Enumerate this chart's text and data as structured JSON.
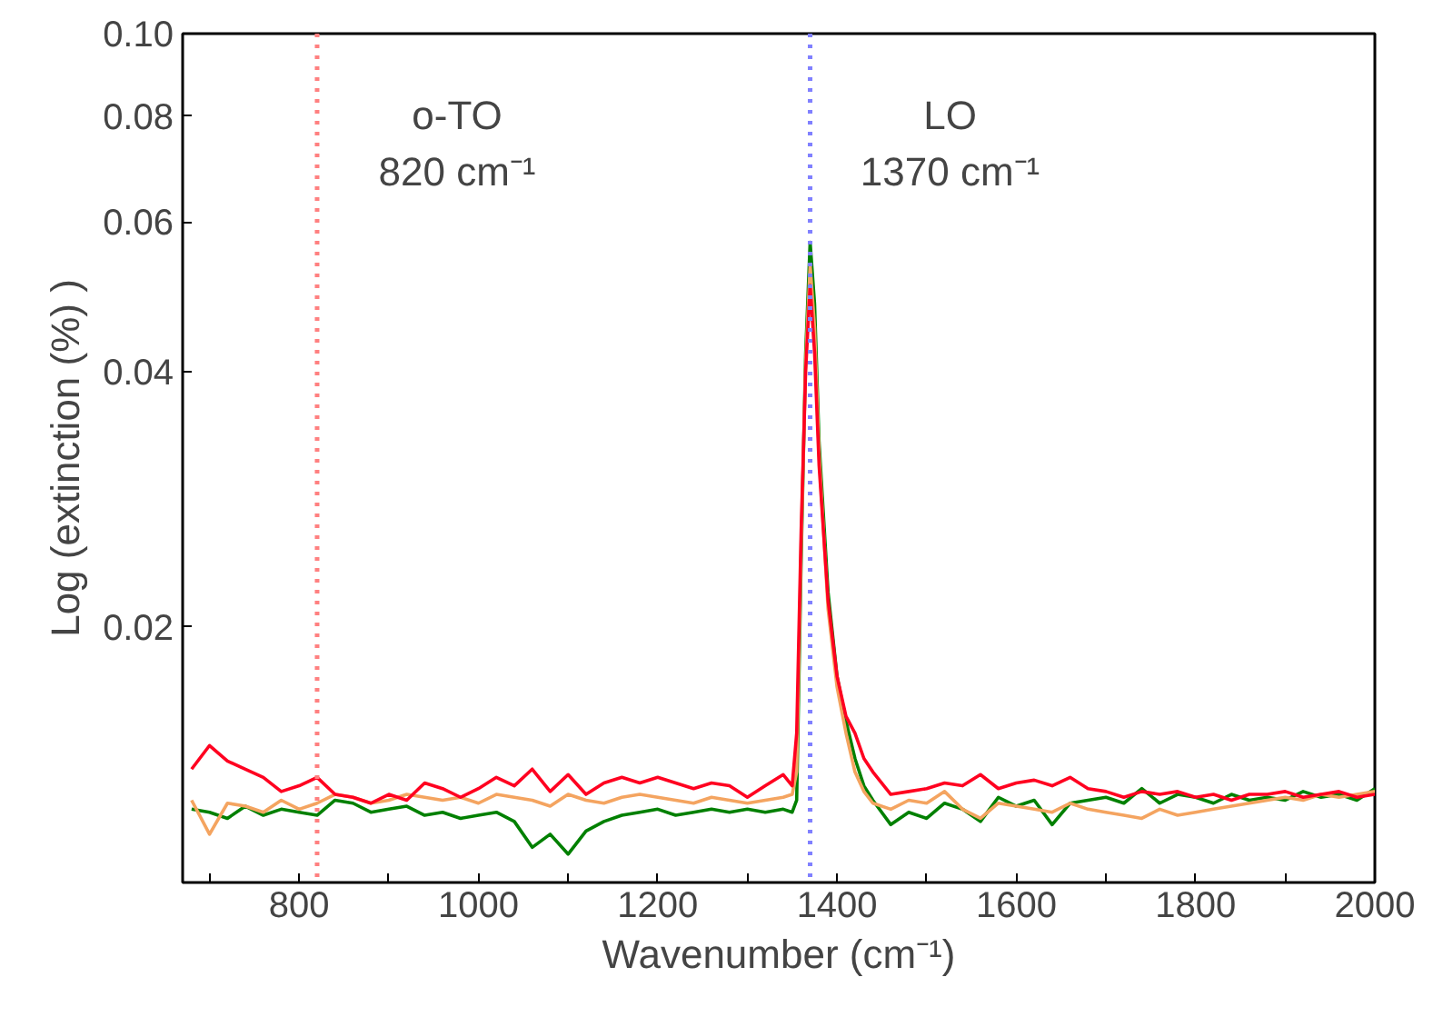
{
  "chart_data": {
    "type": "line",
    "xlabel": "Wavenumber (cm⁻¹)",
    "ylabel": "Log (extinction (%) )",
    "x": [
      680,
      700,
      720,
      740,
      760,
      780,
      800,
      820,
      840,
      860,
      880,
      900,
      920,
      940,
      960,
      980,
      1000,
      1020,
      1040,
      1060,
      1080,
      1100,
      1120,
      1140,
      1160,
      1180,
      1200,
      1220,
      1240,
      1260,
      1280,
      1300,
      1320,
      1340,
      1350,
      1355,
      1360,
      1365,
      1370,
      1375,
      1380,
      1390,
      1400,
      1410,
      1420,
      1430,
      1440,
      1460,
      1480,
      1500,
      1520,
      1540,
      1560,
      1580,
      1600,
      1620,
      1640,
      1660,
      1680,
      1700,
      1720,
      1740,
      1760,
      1780,
      1800,
      1820,
      1840,
      1860,
      1880,
      1900,
      1920,
      1940,
      1960,
      1980,
      2000
    ],
    "series": [
      {
        "color": "#008000",
        "values": [
          0.0122,
          0.0121,
          0.0119,
          0.0123,
          0.012,
          0.0122,
          0.0121,
          0.012,
          0.0125,
          0.0124,
          0.0121,
          0.0122,
          0.0123,
          0.012,
          0.0121,
          0.0119,
          0.012,
          0.0121,
          0.0118,
          0.011,
          0.0114,
          0.0108,
          0.0115,
          0.0118,
          0.012,
          0.0121,
          0.0122,
          0.012,
          0.0121,
          0.0122,
          0.0121,
          0.0122,
          0.0121,
          0.0122,
          0.0121,
          0.0125,
          0.024,
          0.042,
          0.0568,
          0.048,
          0.033,
          0.022,
          0.0175,
          0.0155,
          0.014,
          0.013,
          0.0125,
          0.0117,
          0.0121,
          0.0119,
          0.0124,
          0.0122,
          0.0118,
          0.0126,
          0.0123,
          0.0125,
          0.0117,
          0.0124,
          0.0125,
          0.0126,
          0.0124,
          0.0129,
          0.0124,
          0.0127,
          0.0126,
          0.0124,
          0.0127,
          0.0125,
          0.0126,
          0.0125,
          0.0128,
          0.0126,
          0.0127,
          0.0125,
          0.0129
        ]
      },
      {
        "color": "#f4a460",
        "values": [
          0.0125,
          0.0114,
          0.0124,
          0.0123,
          0.0121,
          0.0125,
          0.0122,
          0.0124,
          0.0127,
          0.0126,
          0.0124,
          0.0125,
          0.0127,
          0.0126,
          0.0125,
          0.0126,
          0.0124,
          0.0127,
          0.0126,
          0.0125,
          0.0123,
          0.0127,
          0.0125,
          0.0124,
          0.0126,
          0.0127,
          0.0126,
          0.0125,
          0.0124,
          0.0126,
          0.0125,
          0.0124,
          0.0125,
          0.0126,
          0.0127,
          0.0135,
          0.025,
          0.041,
          0.0534,
          0.045,
          0.032,
          0.021,
          0.017,
          0.015,
          0.0135,
          0.0128,
          0.0124,
          0.0122,
          0.0125,
          0.0124,
          0.0128,
          0.0122,
          0.0119,
          0.0124,
          0.0123,
          0.0122,
          0.0121,
          0.0124,
          0.0122,
          0.0121,
          0.012,
          0.0119,
          0.0122,
          0.012,
          0.0121,
          0.0122,
          0.0123,
          0.0124,
          0.0125,
          0.0126,
          0.0125,
          0.0127,
          0.0126,
          0.0127,
          0.0128
        ]
      },
      {
        "color": "#ff0020",
        "values": [
          0.0136,
          0.0145,
          0.0139,
          0.0136,
          0.0133,
          0.0128,
          0.013,
          0.0133,
          0.0127,
          0.0126,
          0.0124,
          0.0127,
          0.0125,
          0.0131,
          0.0129,
          0.0126,
          0.0129,
          0.0133,
          0.013,
          0.0136,
          0.0128,
          0.0134,
          0.0127,
          0.0131,
          0.0133,
          0.0131,
          0.0133,
          0.0131,
          0.0129,
          0.0131,
          0.013,
          0.0126,
          0.013,
          0.0134,
          0.013,
          0.015,
          0.026,
          0.04,
          0.0505,
          0.042,
          0.031,
          0.0215,
          0.0175,
          0.0157,
          0.015,
          0.014,
          0.0135,
          0.0127,
          0.0128,
          0.0129,
          0.0131,
          0.013,
          0.0134,
          0.0129,
          0.0131,
          0.0132,
          0.013,
          0.0133,
          0.0129,
          0.0128,
          0.0126,
          0.0128,
          0.0127,
          0.0128,
          0.0126,
          0.0127,
          0.0125,
          0.0127,
          0.0127,
          0.0128,
          0.0126,
          0.0127,
          0.0128,
          0.0126,
          0.0127
        ]
      }
    ],
    "xlim": [
      670,
      2000
    ],
    "xticks": [
      {
        "value": 700,
        "label": null
      },
      800,
      {
        "value": 900,
        "label": null
      },
      1000,
      {
        "value": 1100,
        "label": null
      },
      1200,
      {
        "value": 1300,
        "label": null
      },
      1400,
      {
        "value": 1500,
        "label": null
      },
      1600,
      {
        "value": 1700,
        "label": null
      },
      1800,
      {
        "value": 1900,
        "label": null
      },
      2000
    ],
    "ylim": [
      0.01,
      0.1
    ],
    "yticks": [
      0.02,
      0.04,
      0.06,
      0.08,
      {
        "value": 0.1,
        "label": "0.10"
      }
    ],
    "log": "y",
    "grid": false,
    "ref_lines": [
      {
        "axis": "x",
        "value": 820,
        "color": "#ff8080",
        "line_style": "dotted"
      },
      {
        "axis": "x",
        "value": 1370,
        "color": "#8080ff",
        "line_style": "dotted"
      }
    ],
    "annotations": [
      "o-TO",
      "820 cm⁻¹",
      "LO",
      "1370 cm⁻¹"
    ]
  }
}
